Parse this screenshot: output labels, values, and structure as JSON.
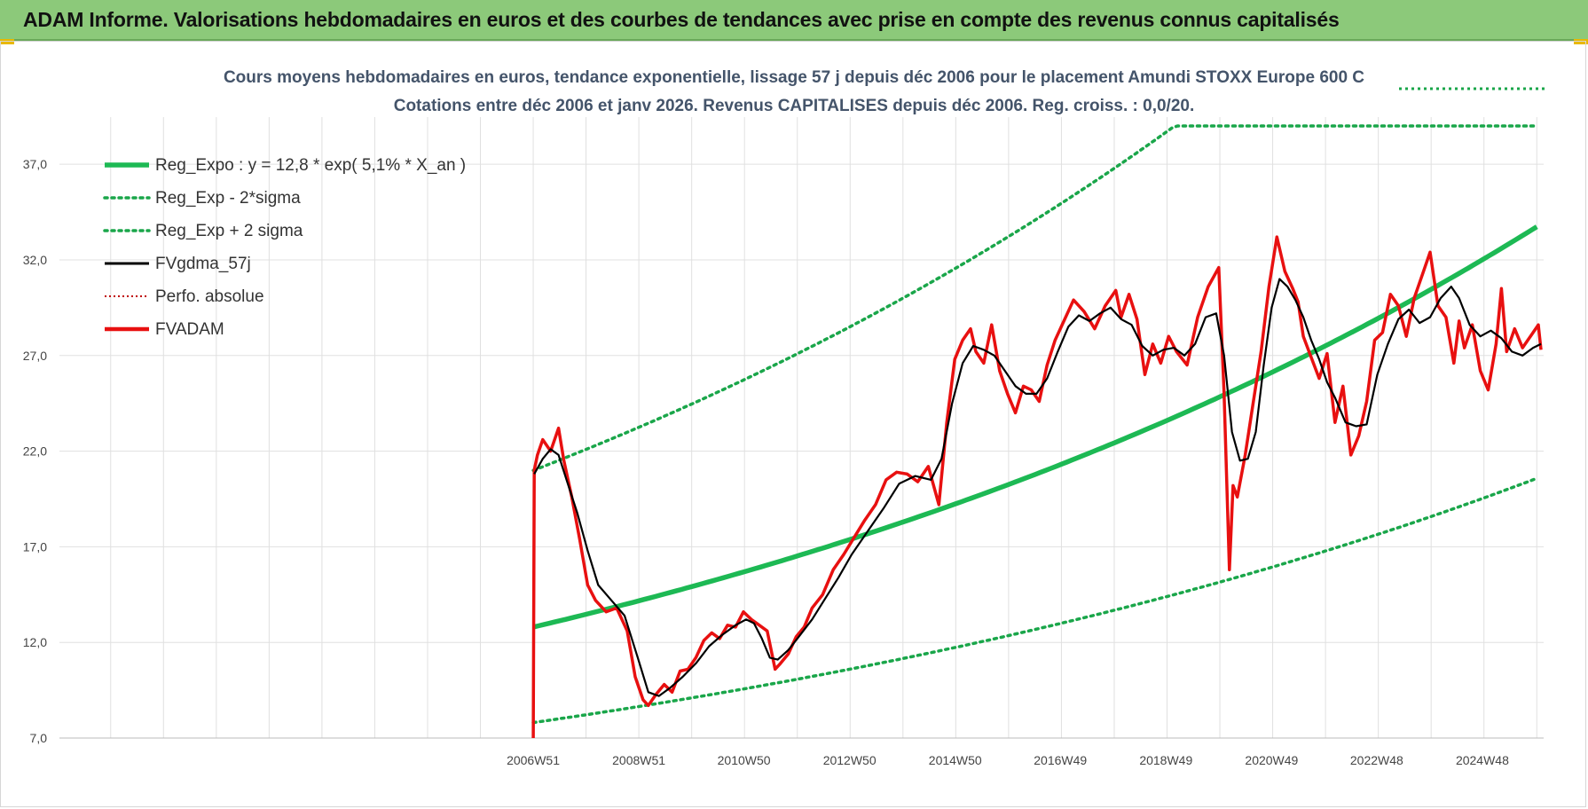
{
  "header": {
    "title": "ADAM Informe. Valorisations hebdomadaires en euros et des courbes de tendances avec prise en compte des revenus connus capitalisés"
  },
  "colors": {
    "banner": "#8cc97a",
    "trend": "#1db954",
    "dotted_band": "#1aa64a",
    "smoothed": "#000000",
    "price": "#e81010",
    "perf": "#c00000",
    "grid": "#e0e0e0"
  },
  "chart_data": {
    "type": "line",
    "title_line1": "Cours moyens hebdomadaires en euros, tendance exponentielle, lissage 57 j depuis déc 2006 pour le placement Amundi STOXX Europe 600 C",
    "title_line2": "Cotations entre déc 2006 et janv 2026. Revenus CAPITALISES depuis déc 2006. Reg. croiss. : 0,0/20.",
    "ylim": [
      7.0,
      39.0
    ],
    "yticks": [
      "7,0",
      "12,0",
      "17,0",
      "22,0",
      "27,0",
      "32,0",
      "37,0"
    ],
    "ytick_values": [
      7,
      12,
      17,
      22,
      27,
      32,
      37
    ],
    "xlim": [
      1998.0,
      2026.1
    ],
    "xticks": [
      "2006W51",
      "2008W51",
      "2010W50",
      "2012W50",
      "2014W50",
      "2016W49",
      "2018W49",
      "2020W49",
      "2022W48",
      "2024W48"
    ],
    "xtick_values": [
      2006.97,
      2008.97,
      2010.96,
      2012.96,
      2014.96,
      2016.95,
      2018.95,
      2020.95,
      2022.94,
      2024.94
    ],
    "legend": [
      {
        "label": "Reg_Expo : y = 12,8 * exp( 5,1% *  X_an )",
        "style": "trend"
      },
      {
        "label": "Reg_Exp - 2*sigma",
        "style": "dotted"
      },
      {
        "label": "Reg_Exp + 2 sigma",
        "style": "dotted"
      },
      {
        "label": "FVgdma_57j",
        "style": "smoothed"
      },
      {
        "label": "Perfo. absolue",
        "style": "perf"
      },
      {
        "label": "FVADAM",
        "style": "price"
      }
    ],
    "regression": {
      "a": 12.8,
      "rate": 0.051,
      "start": 2006.97,
      "end": 2026.05,
      "lower_factor": 0.61,
      "upper_factor": 1.64
    },
    "series": [
      {
        "name": "FVADAM",
        "x": [
          2006.97,
          2006.99,
          2007.05,
          2007.15,
          2007.3,
          2007.45,
          2007.55,
          2007.7,
          2007.85,
          2008.0,
          2008.15,
          2008.35,
          2008.55,
          2008.75,
          2008.9,
          2009.05,
          2009.15,
          2009.3,
          2009.45,
          2009.6,
          2009.75,
          2009.9,
          2010.05,
          2010.2,
          2010.35,
          2010.5,
          2010.65,
          2010.8,
          2010.95,
          2011.1,
          2011.25,
          2011.4,
          2011.55,
          2011.65,
          2011.8,
          2011.95,
          2012.1,
          2012.25,
          2012.45,
          2012.65,
          2012.85,
          2013.05,
          2013.25,
          2013.45,
          2013.65,
          2013.85,
          2014.05,
          2014.25,
          2014.45,
          2014.65,
          2014.8,
          2014.95,
          2015.1,
          2015.25,
          2015.35,
          2015.5,
          2015.65,
          2015.8,
          2015.95,
          2016.1,
          2016.25,
          2016.4,
          2016.55,
          2016.7,
          2016.85,
          2017.0,
          2017.2,
          2017.4,
          2017.6,
          2017.8,
          2018.0,
          2018.1,
          2018.25,
          2018.4,
          2018.55,
          2018.7,
          2018.85,
          2019.0,
          2019.15,
          2019.35,
          2019.55,
          2019.75,
          2019.95,
          2020.05,
          2020.15,
          2020.22,
          2020.3,
          2020.45,
          2020.6,
          2020.75,
          2020.9,
          2021.05,
          2021.2,
          2021.35,
          2021.45,
          2021.55,
          2021.7,
          2021.85,
          2022.0,
          2022.15,
          2022.3,
          2022.45,
          2022.6,
          2022.75,
          2022.9,
          2023.05,
          2023.2,
          2023.35,
          2023.5,
          2023.65,
          2023.8,
          2023.95,
          2024.1,
          2024.25,
          2024.4,
          2024.5,
          2024.6,
          2024.75,
          2024.9,
          2025.05,
          2025.2,
          2025.3,
          2025.4,
          2025.55,
          2025.7,
          2025.85,
          2026.0,
          2026.05
        ],
        "y": [
          7.0,
          21.0,
          21.8,
          22.6,
          22.0,
          23.2,
          21.5,
          19.6,
          17.4,
          15.0,
          14.2,
          13.6,
          13.8,
          12.6,
          10.2,
          9.0,
          8.7,
          9.3,
          9.8,
          9.4,
          10.5,
          10.6,
          11.2,
          12.1,
          12.5,
          12.2,
          12.9,
          12.8,
          13.6,
          13.2,
          12.9,
          12.6,
          10.6,
          10.9,
          11.4,
          12.3,
          12.8,
          13.8,
          14.5,
          15.8,
          16.6,
          17.5,
          18.4,
          19.2,
          20.5,
          20.9,
          20.8,
          20.4,
          21.2,
          19.2,
          23.5,
          26.8,
          27.8,
          28.4,
          27.2,
          26.6,
          28.6,
          26.2,
          25.0,
          24.0,
          25.4,
          25.2,
          24.6,
          26.5,
          27.8,
          28.7,
          29.9,
          29.3,
          28.4,
          29.6,
          30.4,
          29.0,
          30.2,
          28.9,
          26.0,
          27.6,
          26.6,
          28.0,
          27.2,
          26.5,
          29.0,
          30.6,
          31.6,
          25.0,
          15.8,
          20.2,
          19.6,
          21.8,
          24.5,
          27.2,
          30.6,
          33.2,
          31.4,
          30.5,
          29.8,
          28.0,
          26.9,
          25.8,
          27.1,
          23.5,
          25.4,
          21.8,
          22.8,
          24.6,
          27.8,
          28.2,
          30.2,
          29.6,
          28.0,
          30.0,
          31.2,
          32.4,
          29.6,
          29.0,
          26.6,
          28.8,
          27.4,
          28.6,
          26.2,
          25.2,
          27.6,
          30.5,
          27.2,
          28.4,
          27.4,
          28.0,
          28.6,
          27.3
        ]
      },
      {
        "name": "FVgdma_57j",
        "x": [
          2006.99,
          2007.15,
          2007.3,
          2007.45,
          2007.6,
          2007.8,
          2008.0,
          2008.2,
          2008.45,
          2008.7,
          2008.95,
          2009.15,
          2009.35,
          2009.55,
          2009.8,
          2010.05,
          2010.3,
          2010.55,
          2010.8,
          2011.0,
          2011.15,
          2011.3,
          2011.45,
          2011.6,
          2011.8,
          2012.0,
          2012.25,
          2012.5,
          2012.75,
          2013.0,
          2013.3,
          2013.6,
          2013.9,
          2014.2,
          2014.5,
          2014.7,
          2014.9,
          2015.1,
          2015.3,
          2015.5,
          2015.7,
          2015.9,
          2016.1,
          2016.3,
          2016.5,
          2016.7,
          2016.9,
          2017.1,
          2017.3,
          2017.5,
          2017.7,
          2017.9,
          2018.1,
          2018.3,
          2018.5,
          2018.7,
          2018.9,
          2019.1,
          2019.3,
          2019.5,
          2019.7,
          2019.9,
          2020.05,
          2020.2,
          2020.35,
          2020.5,
          2020.65,
          2020.8,
          2020.95,
          2021.1,
          2021.25,
          2021.4,
          2021.55,
          2021.7,
          2021.85,
          2022.0,
          2022.15,
          2022.35,
          2022.55,
          2022.75,
          2022.95,
          2023.15,
          2023.35,
          2023.55,
          2023.75,
          2023.95,
          2024.15,
          2024.35,
          2024.5,
          2024.7,
          2024.9,
          2025.1,
          2025.3,
          2025.5,
          2025.7,
          2025.9,
          2026.05
        ],
        "y": [
          20.8,
          21.6,
          22.1,
          21.8,
          20.5,
          18.8,
          16.8,
          15.0,
          14.2,
          13.4,
          11.2,
          9.4,
          9.2,
          9.6,
          10.2,
          10.9,
          11.8,
          12.4,
          12.9,
          13.2,
          13.0,
          12.2,
          11.2,
          11.1,
          11.6,
          12.3,
          13.2,
          14.3,
          15.4,
          16.6,
          17.8,
          19.0,
          20.3,
          20.7,
          20.5,
          21.6,
          24.5,
          26.6,
          27.5,
          27.3,
          27.0,
          26.2,
          25.4,
          25.0,
          25.0,
          25.8,
          27.2,
          28.5,
          29.1,
          28.8,
          29.2,
          29.5,
          28.9,
          28.6,
          27.5,
          27.0,
          27.3,
          27.4,
          27.0,
          27.6,
          29.0,
          29.2,
          27.0,
          23.0,
          21.5,
          21.6,
          23.0,
          26.5,
          29.5,
          31.0,
          30.6,
          29.9,
          29.0,
          27.8,
          26.8,
          25.6,
          24.8,
          23.5,
          23.3,
          23.4,
          26.0,
          27.6,
          28.9,
          29.4,
          28.7,
          29.0,
          30.0,
          30.6,
          30.0,
          28.6,
          28.0,
          28.3,
          27.9,
          27.2,
          27.0,
          27.4,
          27.6
        ]
      }
    ]
  }
}
